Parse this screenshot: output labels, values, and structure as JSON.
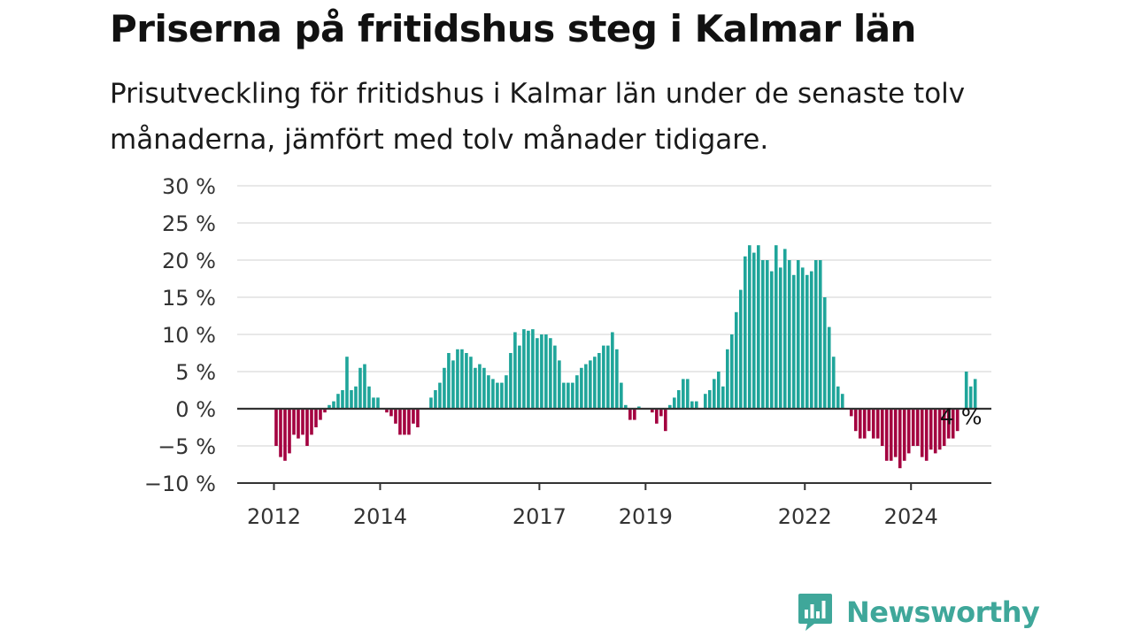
{
  "header": {
    "title": "Priserna på fritidshus steg i Kalmar län",
    "subtitle": "Prisutveckling för fritidshus i Kalmar län under de senaste tolv månaderna, jämfört med tolv månader tidigare."
  },
  "brand": {
    "name": "Newsworthy",
    "icon": "newsworthy-bar-chart-icon",
    "color": "#3fa79a"
  },
  "chart_data": {
    "type": "bar",
    "title": "Priserna på fritidshus steg i Kalmar län",
    "ylabel": "",
    "xlabel": "",
    "ylim": [
      -10,
      30
    ],
    "yticks": [
      {
        "value": 30,
        "label": "30 %"
      },
      {
        "value": 25,
        "label": "25 %"
      },
      {
        "value": 20,
        "label": "20 %"
      },
      {
        "value": 15,
        "label": "15 %"
      },
      {
        "value": 10,
        "label": "10 %"
      },
      {
        "value": 5,
        "label": "5 %"
      },
      {
        "value": 0,
        "label": "0 %"
      },
      {
        "value": -5,
        "label": "−5 %"
      },
      {
        "value": -10,
        "label": "−10 %"
      }
    ],
    "xticks": [
      "2012",
      "2014",
      "2017",
      "2019",
      "2022",
      "2024"
    ],
    "grid": true,
    "start": "2012-01",
    "positive_color": "#1fa59a",
    "negative_color": "#a3003f",
    "annotation": {
      "label": "4 %",
      "month": "2024-10"
    },
    "values": [
      -5,
      -6.5,
      -7,
      -6,
      -3.5,
      -4,
      -3.5,
      -5,
      -3.5,
      -2.5,
      -1.5,
      -0.5,
      0.5,
      1,
      2,
      2.5,
      7,
      2.5,
      3,
      5.5,
      6,
      3,
      1.5,
      1.5,
      0,
      -0.5,
      -1,
      -2,
      -3.5,
      -3.5,
      -3.5,
      -2,
      -2.5,
      0,
      0,
      1.5,
      2.5,
      3.5,
      5.5,
      7.5,
      6.5,
      8,
      8,
      7.5,
      7,
      5.5,
      6,
      5.5,
      4.5,
      4,
      3.5,
      3.5,
      4.5,
      7.5,
      10.3,
      8.5,
      10.7,
      10.5,
      10.7,
      9.5,
      10,
      10,
      9.5,
      8.5,
      6.5,
      3.5,
      3.5,
      3.5,
      4.5,
      5.5,
      6,
      6.5,
      7,
      7.5,
      8.5,
      8.5,
      10.3,
      8,
      3.5,
      0.5,
      -1.5,
      -1.5,
      0.3,
      0,
      0,
      -0.5,
      -2,
      -1,
      -3,
      0.5,
      1.5,
      2.5,
      4,
      4,
      1,
      1,
      0,
      2,
      2.5,
      4,
      5,
      3,
      8,
      10,
      13,
      16,
      20.5,
      22,
      21,
      22,
      20,
      20,
      18.5,
      22,
      19,
      21.5,
      20,
      18,
      20,
      19,
      18,
      18.5,
      20,
      20,
      15,
      11,
      7,
      3,
      2,
      0,
      -1,
      -3,
      -4,
      -4,
      -3,
      -4,
      -4,
      -5,
      -7,
      -7,
      -6.5,
      -8,
      -7,
      -6,
      -5,
      -5,
      -6.5,
      -7,
      -5.5,
      -6,
      -5.5,
      -5,
      -4,
      -4,
      -3,
      0,
      5,
      3,
      4
    ]
  }
}
